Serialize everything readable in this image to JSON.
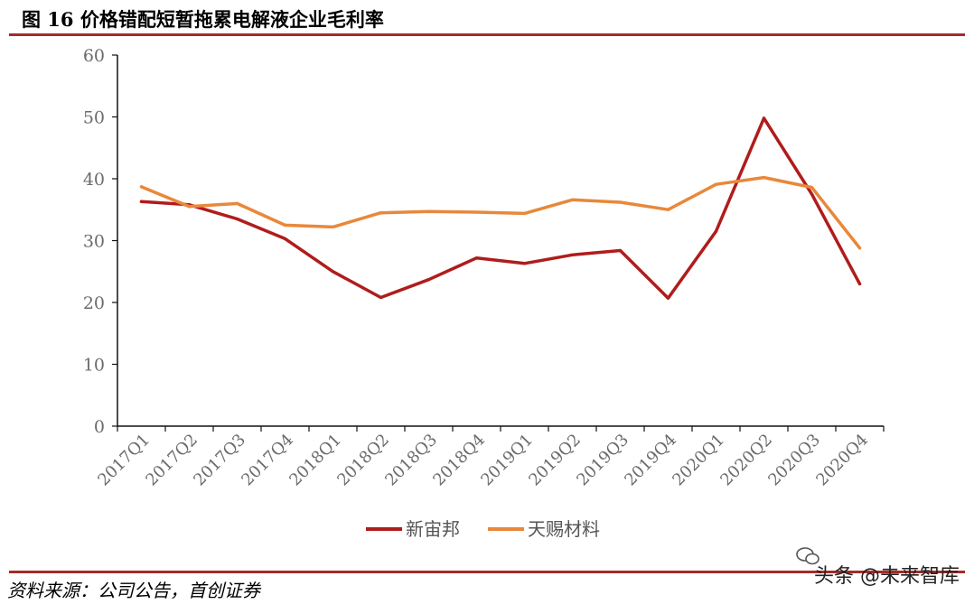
{
  "figure": {
    "title": "图 16 价格错配短暂拖累电解液企业毛利率",
    "source": "资料来源：公司公告，首创证券",
    "watermark": "头条 @未来智库",
    "watermark_icon": "wechat-icon",
    "accent_color": "#a52a2a"
  },
  "chart_data": {
    "type": "line",
    "title": "",
    "xlabel": "",
    "ylabel": "",
    "ylim": [
      0,
      60
    ],
    "yticks": [
      0,
      10,
      20,
      30,
      40,
      50,
      60
    ],
    "grid": false,
    "legend_position": "bottom",
    "categories": [
      "2017Q1",
      "2017Q2",
      "2017Q3",
      "2017Q4",
      "2018Q1",
      "2018Q2",
      "2018Q3",
      "2018Q4",
      "2019Q1",
      "2019Q2",
      "2019Q3",
      "2019Q4",
      "2020Q1",
      "2020Q2",
      "2020Q3",
      "2020Q4"
    ],
    "series": [
      {
        "name": "新宙邦",
        "color": "#b01c1c",
        "values": [
          36.3,
          35.8,
          33.5,
          30.3,
          25.0,
          20.8,
          23.7,
          27.2,
          26.3,
          27.7,
          28.4,
          20.7,
          31.5,
          49.8,
          37.5,
          23.0
        ]
      },
      {
        "name": "天赐材料",
        "color": "#e8883a",
        "values": [
          38.7,
          35.5,
          36.0,
          32.5,
          32.2,
          34.5,
          34.7,
          34.6,
          34.4,
          36.6,
          36.2,
          35.0,
          39.1,
          40.2,
          38.6,
          28.8
        ]
      }
    ]
  }
}
